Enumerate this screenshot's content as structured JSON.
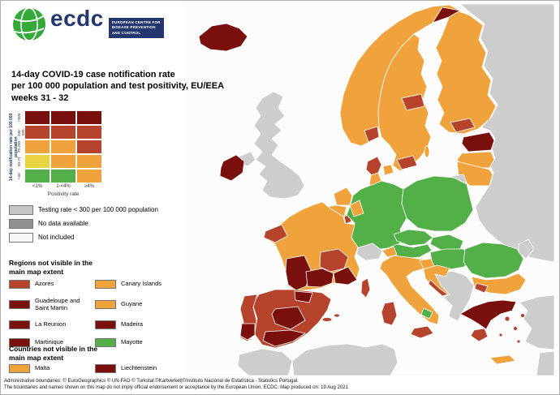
{
  "logo": {
    "name": "ecdc",
    "org": "EUROPEAN CENTRE FOR DISEASE PREVENTION AND CONTROL"
  },
  "title": {
    "line1": "14-day COVID-19 case notification rate",
    "line2": "per 100 000 population and test positivity, EU/EEA",
    "line3": "weeks 31 - 32"
  },
  "palette": {
    "green": "#53b048",
    "yellow": "#e9d53f",
    "orange": "#f0a33c",
    "red": "#b6432b",
    "darkred": "#7a100d",
    "gray": "#cdcdcd",
    "darkgray": "#8f8f8f",
    "lightgray": "#c6c6c6",
    "notincluded": "#f7f7f7"
  },
  "matrix": {
    "y_label": "14-day notification rate per 100 000 population",
    "x_label": "Positivity rate",
    "x_ticks": [
      "<1%",
      "1-<4%",
      "≥4%"
    ],
    "y_ticks": [
      ">500",
      "200-500",
      "75-200",
      "50-74",
      "<50"
    ],
    "rows": [
      [
        "darkred",
        "darkred",
        "darkred"
      ],
      [
        "red",
        "red",
        "red"
      ],
      [
        "orange",
        "orange",
        "red"
      ],
      [
        "yellow",
        "orange",
        "orange"
      ],
      [
        "green",
        "green",
        "orange"
      ]
    ]
  },
  "status_legend": [
    {
      "label": "Testing rate < 300 per 100 000 population",
      "color": "lightgray"
    },
    {
      "label": "No data available",
      "color": "darkgray"
    },
    {
      "label": "Not included",
      "color": "notincluded"
    }
  ],
  "regions_section": {
    "heading": "Regions not visible in the main map extent",
    "items": [
      {
        "label": "Azores",
        "color": "red"
      },
      {
        "label": "Canary Islands",
        "color": "orange"
      },
      {
        "label": "Guadeloupe and Saint Martin",
        "color": "darkred"
      },
      {
        "label": "Guyane",
        "color": "orange"
      },
      {
        "label": "La Reunion",
        "color": "darkred"
      },
      {
        "label": "Madeira",
        "color": "darkred"
      },
      {
        "label": "Martinique",
        "color": "darkred"
      },
      {
        "label": "Mayotte",
        "color": "green"
      }
    ]
  },
  "countries_section": {
    "heading": "Countries not visible in the main map extent",
    "items": [
      {
        "label": "Malta",
        "color": "orange"
      },
      {
        "label": "Liechtenstein",
        "color": "darkred"
      }
    ]
  },
  "footer": {
    "line1": "Administrative boundaries: © EuroGeographics © UN-FAO © Turkstat.©Kartverket|©Instituto Nacional de Estatística - Statistics Portugal.",
    "line2": "The boundaries and names shown on this map do not imply official endorsement or acceptance by the European Union. ECDC. Map produced on: 19 Aug 2021"
  },
  "map": {
    "regions": {
      "russia": "gray",
      "turkey": "gray",
      "africa-west": "gray",
      "africa-center": "gray",
      "levant": "gray",
      "norway": "orange",
      "sweden": "orange",
      "finland": "orange",
      "norway-north": "darkred",
      "norway-oslo": "red",
      "sweden-central": "red",
      "sweden-south": "red",
      "finland-south": "red",
      "iceland": "darkred",
      "estonia": "darkred",
      "latvia": "orange",
      "lithuania": "orange",
      "kaliningrad": "gray",
      "denmark": "red",
      "denmark-islands": "orange",
      "gotland": "orange",
      "uk": "gray",
      "northern-ireland": "gray",
      "ireland": "darkred",
      "netherlands": "orange",
      "belgium": "orange",
      "luxembourg": "red",
      "germany": "green",
      "germany-west": "orange",
      "germany-north": "orange",
      "poland": "green",
      "czechia": "green",
      "austria": "green",
      "austria-west": "orange",
      "slovakia": "green",
      "hungary": "green",
      "switzerland": "gray",
      "france": "orange",
      "france-brittany": "red",
      "france-centereast": "red",
      "france-southwest": "darkred",
      "france-south": "darkred",
      "france-southeast": "darkred",
      "corsica": "red",
      "spain": "red",
      "spain-north": "darkred",
      "spain-center": "darkred",
      "spain-south": "darkred",
      "balearic-1": "red",
      "balearic-2": "red",
      "portugal": "red",
      "portugal-south": "darkred",
      "italy": "orange",
      "italy-south-green": "green",
      "sicily": "red",
      "sardinia": "red",
      "balkans": "gray",
      "slovenia": "orange",
      "croatia": "orange",
      "croatia-coast": "red",
      "romania": "green",
      "moldova": "gray",
      "bulgaria": "orange",
      "bulgaria-sw": "red",
      "greece": "darkred",
      "peloponnese": "red",
      "greek-island-1": "red",
      "greek-island-2": "red",
      "greek-island-3": "red",
      "greek-island-4": "red",
      "greek-island-5": "red",
      "crete": "orange"
    }
  }
}
